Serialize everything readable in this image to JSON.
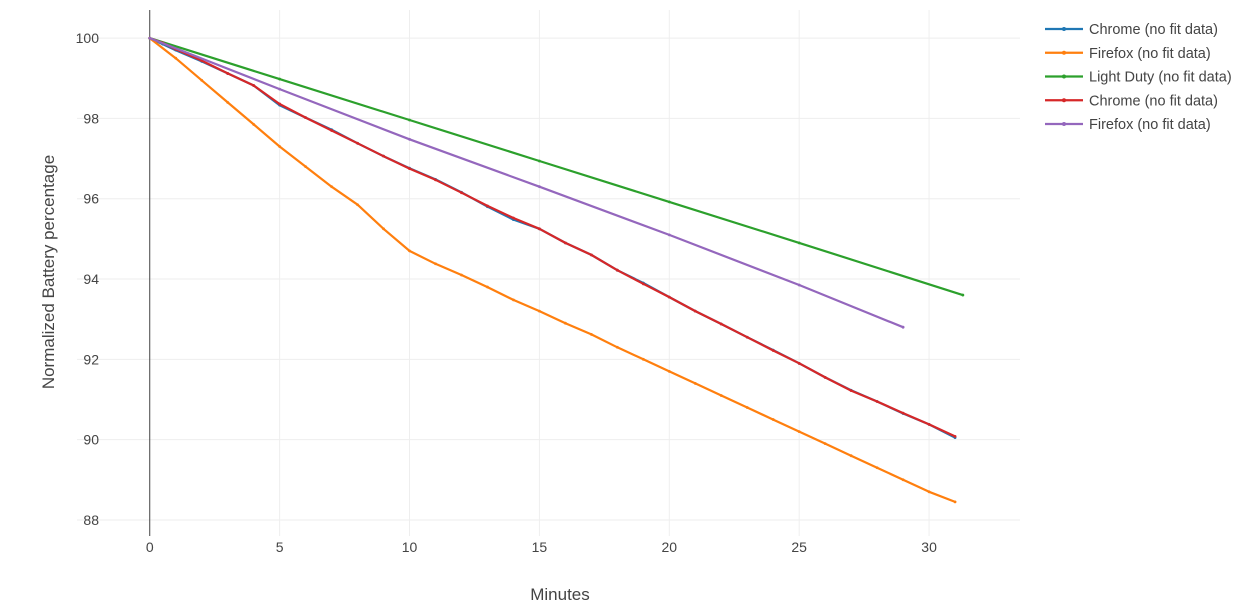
{
  "chart_data": {
    "type": "line",
    "xlabel": "Minutes",
    "ylabel": "Normalized Battery percentage",
    "xlim": [
      -2.8,
      33.5
    ],
    "ylim": [
      87.6,
      100.7
    ],
    "xticks": [
      0,
      5,
      10,
      15,
      20,
      25,
      30
    ],
    "yticks": [
      88,
      90,
      92,
      94,
      96,
      98,
      100
    ],
    "grid": true,
    "legend_position": "top-right",
    "series": [
      {
        "name": "Chrome (no fit data)",
        "color": "#1f77b4",
        "x": [
          0,
          0.5,
          1,
          2,
          3,
          4,
          5,
          6,
          7,
          8,
          9,
          10,
          11,
          12,
          13,
          14,
          15,
          16,
          17,
          18,
          19,
          20,
          21,
          22,
          23,
          24,
          25,
          26,
          27,
          28,
          29,
          30,
          31
        ],
        "y": [
          100,
          99.85,
          99.7,
          99.42,
          99.12,
          98.82,
          98.33,
          98.02,
          97.72,
          97.38,
          97.06,
          96.76,
          96.48,
          96.16,
          95.8,
          95.48,
          95.25,
          94.9,
          94.6,
          94.22,
          93.9,
          93.55,
          93.2,
          92.88,
          92.55,
          92.23,
          91.9,
          91.55,
          91.23,
          90.95,
          90.65,
          90.38,
          90.05
        ]
      },
      {
        "name": "Firefox (no fit data)",
        "color": "#ff7f0e",
        "x": [
          0,
          1,
          2,
          3,
          4,
          5,
          6,
          7,
          8,
          9,
          10,
          11,
          12,
          13,
          14,
          15,
          16,
          17,
          18,
          19,
          20,
          21,
          22,
          23,
          24,
          25,
          26,
          27,
          28,
          29,
          30,
          31
        ],
        "y": [
          100,
          99.5,
          98.95,
          98.4,
          97.85,
          97.3,
          96.8,
          96.3,
          95.85,
          95.25,
          94.7,
          94.38,
          94.1,
          93.8,
          93.48,
          93.2,
          92.9,
          92.62,
          92.3,
          92.0,
          91.7,
          91.4,
          91.1,
          90.8,
          90.5,
          90.2,
          89.9,
          89.6,
          89.3,
          89.0,
          88.7,
          88.45
        ]
      },
      {
        "name": "Light Duty (no fit data)",
        "color": "#2ca02c",
        "x": [
          0,
          5,
          10,
          15,
          20,
          25,
          31.3
        ],
        "y": [
          100,
          98.98,
          97.96,
          96.94,
          95.92,
          94.9,
          93.6
        ]
      },
      {
        "name": "Chrome (no fit data)",
        "color": "#d62728",
        "x": [
          0,
          0.5,
          1,
          2,
          3,
          4,
          5,
          6,
          7,
          8,
          9,
          10,
          11,
          12,
          13,
          14,
          15,
          16,
          17,
          18,
          19,
          20,
          21,
          22,
          23,
          24,
          25,
          26,
          27,
          28,
          29,
          30,
          31
        ],
        "y": [
          100,
          99.88,
          99.72,
          99.44,
          99.12,
          98.82,
          98.36,
          98.02,
          97.7,
          97.38,
          97.06,
          96.75,
          96.47,
          96.15,
          95.82,
          95.52,
          95.25,
          94.9,
          94.6,
          94.22,
          93.88,
          93.55,
          93.2,
          92.88,
          92.55,
          92.22,
          91.9,
          91.55,
          91.22,
          90.95,
          90.66,
          90.38,
          90.08
        ]
      },
      {
        "name": "Firefox (no fit data)",
        "color": "#9467bd",
        "x": [
          0,
          5,
          10,
          15,
          20,
          25,
          29
        ],
        "y": [
          100,
          98.73,
          97.48,
          96.3,
          95.1,
          93.85,
          92.8
        ]
      }
    ]
  }
}
